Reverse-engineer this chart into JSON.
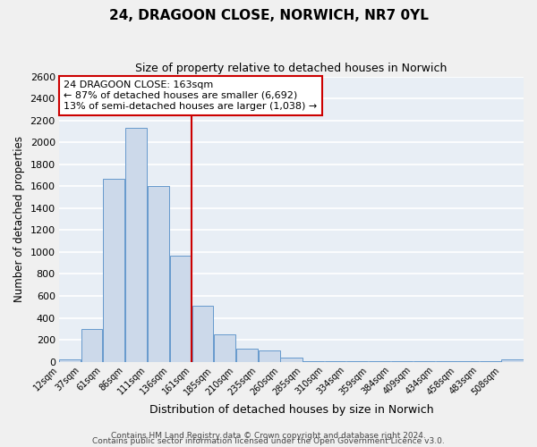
{
  "title": "24, DRAGOON CLOSE, NORWICH, NR7 0YL",
  "subtitle": "Size of property relative to detached houses in Norwich",
  "xlabel": "Distribution of detached houses by size in Norwich",
  "ylabel": "Number of detached properties",
  "bar_left_edges": [
    12,
    37,
    61,
    86,
    111,
    136,
    161,
    185,
    210,
    235,
    260,
    285,
    310,
    334,
    359,
    384,
    409,
    434,
    458,
    483,
    508
  ],
  "bar_heights": [
    25,
    300,
    1670,
    2130,
    1600,
    970,
    510,
    250,
    120,
    100,
    35,
    8,
    8,
    5,
    5,
    5,
    5,
    5,
    5,
    5,
    20
  ],
  "bar_widths": [
    25,
    24,
    25,
    25,
    25,
    25,
    24,
    25,
    25,
    25,
    25,
    25,
    24,
    25,
    25,
    25,
    25,
    25,
    25,
    25,
    25
  ],
  "tick_labels": [
    "12sqm",
    "37sqm",
    "61sqm",
    "86sqm",
    "111sqm",
    "136sqm",
    "161sqm",
    "185sqm",
    "210sqm",
    "235sqm",
    "260sqm",
    "285sqm",
    "310sqm",
    "334sqm",
    "359sqm",
    "384sqm",
    "409sqm",
    "434sqm",
    "458sqm",
    "483sqm",
    "508sqm"
  ],
  "bar_color": "#ccd9ea",
  "bar_edgecolor": "#6699cc",
  "vline_x": 161,
  "vline_color": "#cc0000",
  "annotation_box_text": "24 DRAGOON CLOSE: 163sqm\n← 87% of detached houses are smaller (6,692)\n13% of semi-detached houses are larger (1,038) →",
  "ylim": [
    0,
    2600
  ],
  "xlim": [
    12,
    533
  ],
  "yticks": [
    0,
    200,
    400,
    600,
    800,
    1000,
    1200,
    1400,
    1600,
    1800,
    2000,
    2200,
    2400,
    2600
  ],
  "background_color": "#e8eef5",
  "grid_color": "#ffffff",
  "footer_line1": "Contains HM Land Registry data © Crown copyright and database right 2024.",
  "footer_line2": "Contains public sector information licensed under the Open Government Licence v3.0."
}
